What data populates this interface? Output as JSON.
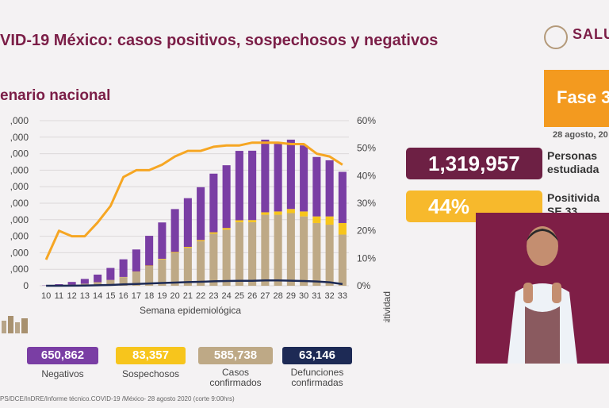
{
  "header": {
    "title": "VID-19 México: casos positivos, sospechosos y negativos",
    "subtitle": "enario nacional",
    "logo_text": "SALU"
  },
  "side": {
    "fase_label": "Fase 3",
    "date": "28 agosto, 20",
    "big1": "1,319,957",
    "big1_label": [
      "Personas",
      "estudiada"
    ],
    "big2": "44%",
    "big2_label": [
      "Positivida",
      "SE 33"
    ]
  },
  "stats": [
    {
      "value": "650,862",
      "label": [
        "Negativos"
      ],
      "color": "#7a3ea4"
    },
    {
      "value": "83,357",
      "label": [
        "Sospechosos"
      ],
      "color": "#f7c51c"
    },
    {
      "value": "585,738",
      "label": [
        "Casos",
        "confirmados"
      ],
      "color": "#bea986"
    },
    {
      "value": "63,146",
      "label": [
        "Defunciones",
        "confirmadas"
      ],
      "color": "#1d2a55"
    }
  ],
  "footer": "PS/DCE/InDRE/Informe técnico.COVID-19 /México- 28 agosto 2020 (corte 9:00hrs)",
  "chart_data": {
    "type": "bar",
    "xlabel": "Semana epidemiológica",
    "ylabel_right": "Positividad",
    "categories": [
      "10",
      "11",
      "12",
      "13",
      "14",
      "15",
      "16",
      "17",
      "18",
      "19",
      "20",
      "21",
      "22",
      "23",
      "24",
      "25",
      "26",
      "27",
      "28",
      "29",
      "30",
      "31",
      "32",
      "33"
    ],
    "ylim_left": [
      0,
      100000
    ],
    "left_ticks": [
      ",000",
      ",000",
      ",000",
      ",000",
      ",000",
      ",000",
      ",000",
      ",000",
      ",000",
      ",000",
      "0"
    ],
    "ylim_right": [
      0,
      60
    ],
    "right_ticks": [
      "60%",
      "50%",
      "40%",
      "30%",
      "20%",
      "10%",
      "0%"
    ],
    "stack_order": [
      "Casos confirmados",
      "Sospechosos",
      "Negativos"
    ],
    "series": [
      {
        "name": "Casos confirmados",
        "color": "#bea986",
        "values": [
          60,
          250,
          700,
          1200,
          2100,
          3400,
          5200,
          8400,
          12000,
          16000,
          20000,
          23000,
          27000,
          31500,
          34000,
          38500,
          38500,
          43000,
          43000,
          44000,
          42000,
          38000,
          37000,
          31000
        ]
      },
      {
        "name": "Sospechosos",
        "color": "#f7c51c",
        "values": [
          0,
          0,
          20,
          40,
          60,
          90,
          120,
          180,
          250,
          350,
          450,
          550,
          700,
          900,
          1000,
          1200,
          1300,
          1500,
          2000,
          2500,
          3000,
          4000,
          5000,
          7000
        ]
      },
      {
        "name": "Negativos",
        "color": "#7a3ea4",
        "values": [
          150,
          700,
          1600,
          2900,
          4600,
          7300,
          10700,
          13400,
          18000,
          22000,
          26000,
          29500,
          32000,
          35500,
          38000,
          42000,
          42000,
          44000,
          41000,
          42000,
          40000,
          36000,
          34000,
          31000
        ]
      },
      {
        "name": "Defunciones confirmadas",
        "color": "#1d2a55",
        "type": "line",
        "values": [
          0,
          20,
          50,
          150,
          300,
          500,
          800,
          1100,
          1400,
          1700,
          1900,
          2200,
          2400,
          2700,
          2900,
          3000,
          3000,
          3200,
          3200,
          3100,
          2900,
          2600,
          2100,
          1000
        ]
      },
      {
        "name": "Positividad",
        "color": "#f6a623",
        "type": "line",
        "axis": "right",
        "values": [
          9.5,
          20,
          18,
          18,
          23,
          29,
          39.5,
          42,
          42,
          44,
          47,
          49,
          49,
          50.5,
          51,
          51,
          52,
          52,
          52,
          51.5,
          51.5,
          48,
          47,
          44
        ]
      }
    ]
  }
}
